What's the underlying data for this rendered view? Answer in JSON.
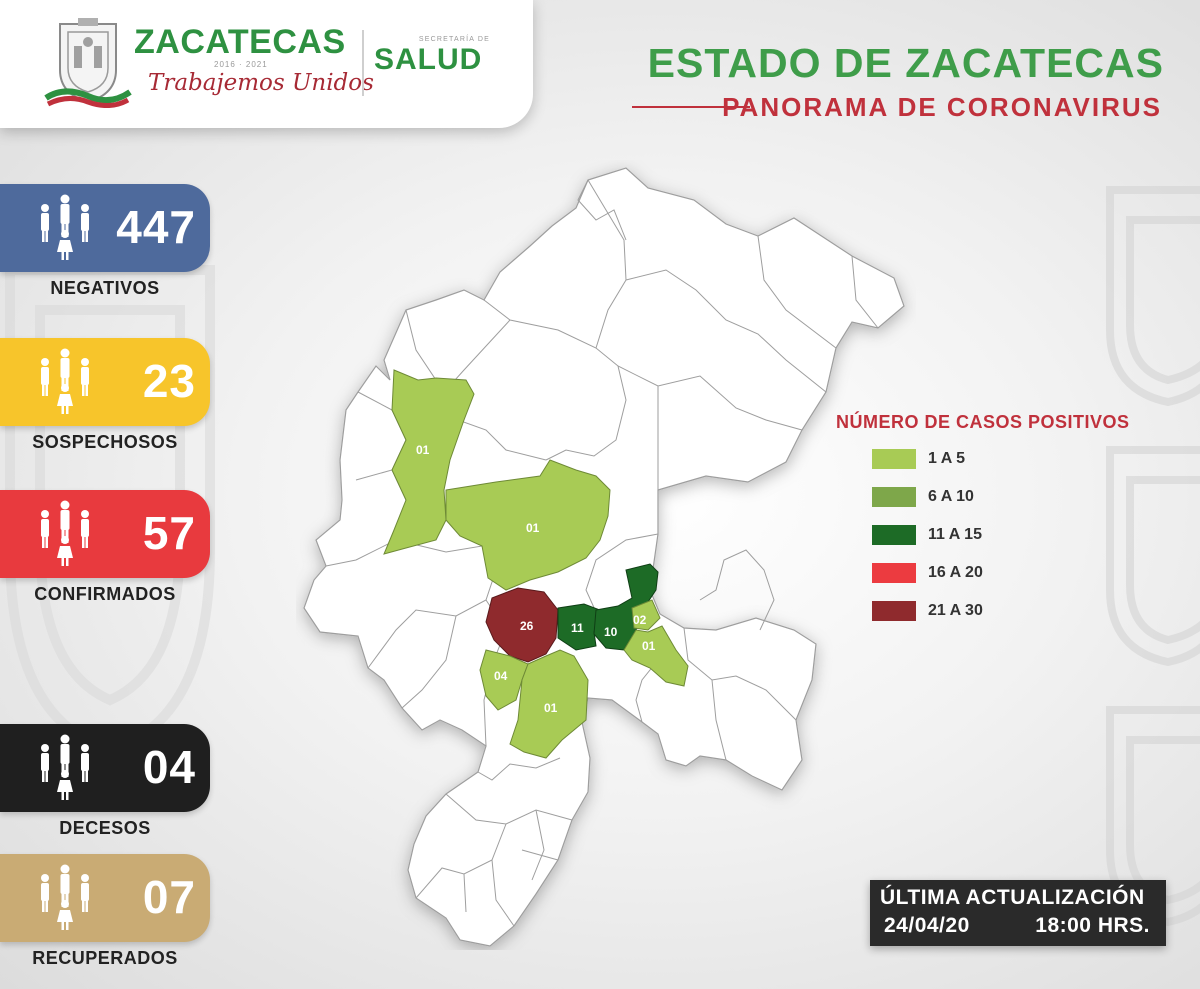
{
  "header": {
    "brand_name": "ZACATECAS",
    "brand_years": "2016 · 2021",
    "brand_motto": "Trabajemos Unidos",
    "dept_small": "SECRETARÍA DE",
    "dept_name": "SALUD",
    "title": "ESTADO DE ZACATECAS",
    "subtitle": "PANORAMA DE CORONAVIRUS"
  },
  "stats": [
    {
      "value": "447",
      "label": "NEGATIVOS",
      "color": "#4e6a9c",
      "icon": "people-icon"
    },
    {
      "value": "23",
      "label": "SOSPECHOSOS",
      "color": "#f7c52b",
      "icon": "people-icon"
    },
    {
      "value": "57",
      "label": "CONFIRMADOS",
      "color": "#e83a3e",
      "icon": "people-icon"
    },
    {
      "value": "04",
      "label": "DECESOS",
      "color": "#1f1f1f",
      "icon": "people-icon"
    },
    {
      "value": "07",
      "label": "RECUPERADOS",
      "color": "#c9ab74",
      "icon": "people-icon"
    }
  ],
  "legend": {
    "title": "NÚMERO DE CASOS POSITIVOS",
    "items": [
      {
        "label": "1 A 5",
        "color": "#a8cb55"
      },
      {
        "label": "6 A 10",
        "color": "#7ea74a"
      },
      {
        "label": "11 A 15",
        "color": "#1d6b26"
      },
      {
        "label": "16 A 20",
        "color": "#ec3b40"
      },
      {
        "label": "21 A 30",
        "color": "#8f2a2d"
      }
    ]
  },
  "map": {
    "municipality_labels": [
      "01",
      "01",
      "26",
      "11",
      "10",
      "02",
      "01",
      "04",
      "01"
    ]
  },
  "update": {
    "title": "ÚLTIMA ACTUALIZACIÓN",
    "date": "24/04/20",
    "time": "18:00 HRS."
  }
}
